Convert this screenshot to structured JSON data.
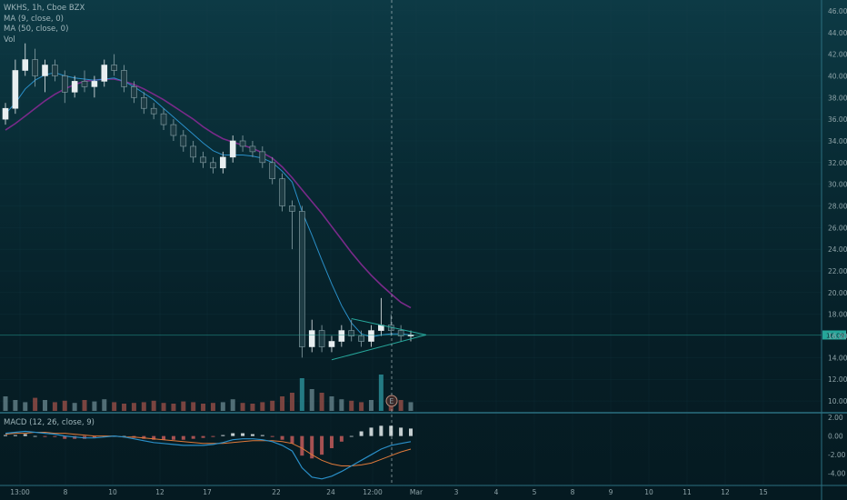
{
  "legend": {
    "symbol_line": "WKHS, 1h, Cboe BZX",
    "ma9": "MA (9, close, 0)",
    "ma50": "MA (50, close, 0)",
    "vol": "Vol"
  },
  "macd_legend": "MACD (12, 26, close, 9)",
  "current_price_tag": "16.09",
  "earnings_marker": "E",
  "chart_data": [
    {
      "type": "candlestick",
      "title": "WKHS, 1h, Cboe BZX",
      "ylim": [
        9,
        47
      ],
      "y_ticks": [
        10,
        12,
        14,
        16,
        18,
        20,
        22,
        24,
        26,
        28,
        30,
        32,
        34,
        36,
        38,
        40,
        42,
        44,
        46
      ],
      "y_tick_labels": [
        "10.00",
        "12.00",
        "14.00",
        "16.00",
        "18.00",
        "20.00",
        "22.00",
        "24.00",
        "26.00",
        "28.00",
        "30.00",
        "32.00",
        "34.00",
        "36.00",
        "38.00",
        "40.00",
        "42.00",
        "44.00",
        "46.00"
      ],
      "x_tick_labels": [
        "13:00",
        "8",
        "10",
        "12",
        "17",
        "22",
        "24",
        "12:00",
        "Mar",
        "3",
        "4",
        "5",
        "8",
        "9",
        "10",
        "11",
        "12",
        "15"
      ],
      "candles": [
        [
          36.0,
          37.5,
          35.5,
          37.0
        ],
        [
          37.0,
          41.5,
          36.5,
          40.5
        ],
        [
          40.5,
          43.0,
          40.0,
          41.5
        ],
        [
          41.5,
          42.5,
          39.0,
          40.0
        ],
        [
          40.0,
          41.5,
          38.5,
          41.0
        ],
        [
          41.0,
          41.5,
          39.5,
          40.0
        ],
        [
          40.0,
          40.5,
          37.5,
          38.5
        ],
        [
          38.5,
          40.0,
          38.0,
          39.5
        ],
        [
          39.5,
          40.5,
          38.5,
          39.0
        ],
        [
          39.0,
          40.0,
          38.0,
          39.5
        ],
        [
          39.5,
          41.5,
          39.0,
          41.0
        ],
        [
          41.0,
          42.0,
          40.0,
          40.5
        ],
        [
          40.5,
          41.0,
          38.5,
          39.0
        ],
        [
          39.0,
          39.5,
          37.5,
          38.0
        ],
        [
          38.0,
          38.5,
          36.5,
          37.0
        ],
        [
          37.0,
          37.5,
          36.0,
          36.5
        ],
        [
          36.5,
          37.0,
          35.0,
          35.5
        ],
        [
          35.5,
          36.0,
          34.0,
          34.5
        ],
        [
          34.5,
          35.0,
          33.0,
          33.5
        ],
        [
          33.5,
          34.0,
          32.0,
          32.5
        ],
        [
          32.5,
          33.0,
          31.5,
          32.0
        ],
        [
          32.0,
          32.5,
          31.0,
          31.5
        ],
        [
          31.5,
          33.0,
          31.0,
          32.5
        ],
        [
          32.5,
          34.5,
          32.0,
          34.0
        ],
        [
          34.0,
          34.5,
          33.0,
          33.5
        ],
        [
          33.5,
          34.0,
          32.5,
          33.0
        ],
        [
          33.0,
          33.5,
          31.5,
          32.0
        ],
        [
          32.0,
          32.5,
          30.0,
          30.5
        ],
        [
          30.5,
          31.0,
          27.5,
          28.0
        ],
        [
          28.0,
          28.5,
          24.0,
          27.5
        ],
        [
          27.5,
          28.0,
          14.0,
          15.0
        ],
        [
          15.0,
          17.5,
          14.5,
          16.5
        ],
        [
          16.5,
          17.0,
          14.5,
          15.0
        ],
        [
          15.0,
          16.0,
          14.5,
          15.5
        ],
        [
          15.5,
          17.0,
          15.0,
          16.5
        ],
        [
          16.5,
          17.5,
          15.5,
          16.0
        ],
        [
          16.0,
          16.5,
          15.0,
          15.5
        ],
        [
          15.5,
          17.0,
          15.0,
          16.5
        ],
        [
          16.5,
          19.5,
          16.0,
          17.0
        ],
        [
          17.0,
          18.0,
          16.0,
          16.5
        ],
        [
          16.5,
          17.0,
          15.5,
          16.0
        ],
        [
          16.0,
          16.5,
          15.5,
          16.1
        ]
      ],
      "ma9": [
        36.5,
        37.5,
        38.8,
        39.6,
        40.1,
        40.3,
        40.0,
        39.8,
        39.7,
        39.6,
        39.7,
        39.8,
        39.5,
        39.0,
        38.4,
        37.8,
        37.0,
        36.2,
        35.4,
        34.6,
        33.8,
        33.1,
        32.7,
        32.7,
        32.7,
        32.6,
        32.4,
        32.0,
        31.2,
        30.2,
        27.5,
        25.3,
        23.0,
        20.8,
        18.8,
        17.2,
        16.2,
        15.9,
        16.1,
        16.2,
        16.2,
        16.1
      ],
      "ma50": [
        35.0,
        35.6,
        36.3,
        37.0,
        37.7,
        38.3,
        38.8,
        39.2,
        39.5,
        39.6,
        39.7,
        39.7,
        39.5,
        39.2,
        38.8,
        38.3,
        37.8,
        37.2,
        36.6,
        36.0,
        35.3,
        34.7,
        34.2,
        33.9,
        33.6,
        33.3,
        32.9,
        32.4,
        31.6,
        30.6,
        29.5,
        28.4,
        27.3,
        26.1,
        24.9,
        23.7,
        22.6,
        21.6,
        20.7,
        19.9,
        19.1,
        18.6
      ],
      "triangle": {
        "upper": [
          [
            35,
            17.6
          ],
          [
            42,
            16.1
          ]
        ],
        "lower": [
          [
            33,
            13.8
          ],
          [
            42,
            16.1
          ]
        ]
      },
      "current_price": 16.09,
      "volume": [
        2,
        1.5,
        1.2,
        1.8,
        1.5,
        1.2,
        1.4,
        1.1,
        1.5,
        1.3,
        1.6,
        1.2,
        1.0,
        1.1,
        1.2,
        1.4,
        1.1,
        1.0,
        1.3,
        1.2,
        1.0,
        1.1,
        1.2,
        1.6,
        1.1,
        1.0,
        1.2,
        1.4,
        2.0,
        2.5,
        4.5,
        3.0,
        2.5,
        2.0,
        1.6,
        1.4,
        1.2,
        1.5,
        5.0,
        2.0,
        1.5,
        1.2
      ]
    },
    {
      "type": "line",
      "title": "MACD (12, 26, close, 9)",
      "ylim": [
        -5.2,
        2.4
      ],
      "y_ticks": [
        2,
        0,
        -2,
        -4
      ],
      "y_tick_labels": [
        "2.00",
        "0.00",
        "-2.00",
        "-4.00"
      ],
      "series": [
        {
          "name": "MACD",
          "values": [
            0.3,
            0.4,
            0.5,
            0.4,
            0.3,
            0.2,
            0.0,
            -0.1,
            -0.2,
            -0.2,
            -0.1,
            0.0,
            -0.1,
            -0.3,
            -0.5,
            -0.7,
            -0.8,
            -0.9,
            -1.0,
            -1.0,
            -1.0,
            -0.9,
            -0.7,
            -0.4,
            -0.3,
            -0.3,
            -0.4,
            -0.6,
            -1.0,
            -1.6,
            -3.4,
            -4.4,
            -4.6,
            -4.3,
            -3.8,
            -3.2,
            -2.6,
            -2.0,
            -1.4,
            -1.0,
            -0.8,
            -0.6
          ]
        },
        {
          "name": "Signal",
          "values": [
            0.2,
            0.3,
            0.3,
            0.4,
            0.4,
            0.3,
            0.3,
            0.2,
            0.1,
            0.0,
            0.0,
            0.0,
            -0.1,
            -0.1,
            -0.2,
            -0.3,
            -0.4,
            -0.5,
            -0.6,
            -0.7,
            -0.8,
            -0.8,
            -0.8,
            -0.7,
            -0.6,
            -0.5,
            -0.5,
            -0.5,
            -0.6,
            -0.8,
            -1.3,
            -2.0,
            -2.6,
            -3.0,
            -3.2,
            -3.2,
            -3.1,
            -2.9,
            -2.5,
            -2.1,
            -1.7,
            -1.4
          ]
        }
      ]
    }
  ],
  "colors": {
    "up": "#e8eef0",
    "down": "#1e3c44",
    "ma9": "#2a8fc8",
    "ma50": "#7a2a8a",
    "triangle": "#26a69a",
    "macd": "#2a8fc8",
    "signal": "#e07a3a",
    "hist_pos": "#e8eef0",
    "hist_neg": "#c25a5a",
    "vol_up": "#6b8a92",
    "vol_down": "#a0524a",
    "vol_spike": "#2f9aa3",
    "price_tag": "#26a69a",
    "grid": "#1a4550",
    "separator": "#2b6f80",
    "crosshair": "#b8c8cc"
  }
}
